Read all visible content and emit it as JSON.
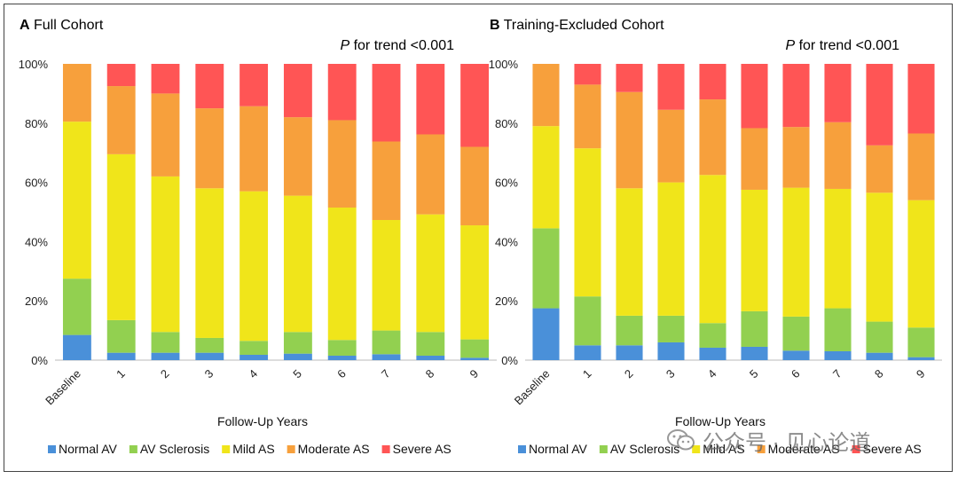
{
  "chart_data": [
    {
      "type": "bar",
      "stacked": true,
      "percent": true,
      "panel_letter": "A",
      "title": "Full Cohort",
      "annotation": {
        "italic": "P",
        "text": " for trend <0.001"
      },
      "xlabel": "Follow-Up Years",
      "ylim": [
        0,
        100
      ],
      "yticks": [
        "0%",
        "20%",
        "40%",
        "60%",
        "80%",
        "100%"
      ],
      "categories": [
        "Baseline",
        "1",
        "2",
        "3",
        "4",
        "5",
        "6",
        "7",
        "8",
        "9"
      ],
      "grid": false,
      "legend_position": "bottom",
      "series": [
        {
          "name": "Normal AV",
          "color": "#4A90D9",
          "values": [
            8.5,
            2.5,
            2.5,
            2.5,
            1.8,
            2.2,
            1.5,
            2.0,
            1.5,
            0.8
          ]
        },
        {
          "name": "AV Sclerosis",
          "color": "#92D050",
          "values": [
            19.0,
            11.0,
            7.0,
            5.0,
            4.7,
            7.3,
            5.3,
            8.0,
            8.0,
            6.2
          ]
        },
        {
          "name": "Mild AS",
          "color": "#F0E51A",
          "values": [
            53.0,
            56.0,
            52.5,
            50.5,
            50.5,
            46.0,
            44.7,
            37.3,
            39.7,
            38.5
          ]
        },
        {
          "name": "Moderate AS",
          "color": "#F7A03C",
          "values": [
            19.5,
            23.0,
            28.0,
            27.0,
            28.7,
            26.5,
            29.5,
            26.5,
            27.0,
            26.5
          ]
        },
        {
          "name": "Severe AS",
          "color": "#FF5555",
          "values": [
            0.0,
            7.5,
            10.0,
            15.0,
            14.3,
            18.0,
            19.0,
            26.2,
            23.8,
            28.0
          ]
        }
      ]
    },
    {
      "type": "bar",
      "stacked": true,
      "percent": true,
      "panel_letter": "B",
      "title": "Training-Excluded Cohort",
      "annotation": {
        "italic": "P",
        "text": " for trend <0.001"
      },
      "xlabel": "Follow-Up Years",
      "ylim": [
        0,
        100
      ],
      "yticks": [
        "0%",
        "20%",
        "40%",
        "60%",
        "80%",
        "100%"
      ],
      "categories": [
        "Baseline",
        "1",
        "2",
        "3",
        "4",
        "5",
        "6",
        "7",
        "8",
        "9"
      ],
      "grid": false,
      "legend_position": "bottom",
      "series": [
        {
          "name": "Normal AV",
          "color": "#4A90D9",
          "values": [
            17.5,
            5.0,
            5.0,
            6.0,
            4.2,
            4.5,
            3.2,
            3.0,
            2.5,
            1.0
          ]
        },
        {
          "name": "AV Sclerosis",
          "color": "#92D050",
          "values": [
            27.0,
            16.5,
            10.0,
            9.0,
            8.3,
            12.0,
            11.5,
            14.5,
            10.5,
            10.0
          ]
        },
        {
          "name": "Mild AS",
          "color": "#F0E51A",
          "values": [
            34.5,
            50.0,
            43.0,
            45.0,
            50.0,
            41.0,
            43.5,
            40.3,
            43.5,
            43.0
          ]
        },
        {
          "name": "Moderate AS",
          "color": "#F7A03C",
          "values": [
            21.0,
            21.5,
            32.5,
            24.5,
            25.5,
            20.8,
            20.5,
            22.5,
            16.0,
            22.5
          ]
        },
        {
          "name": "Severe AS",
          "color": "#FF5555",
          "values": [
            0.0,
            7.0,
            9.5,
            15.5,
            12.0,
            21.7,
            21.3,
            19.7,
            27.5,
            23.5
          ]
        }
      ]
    }
  ],
  "watermark": {
    "text": "公众号 · 见心论道"
  }
}
